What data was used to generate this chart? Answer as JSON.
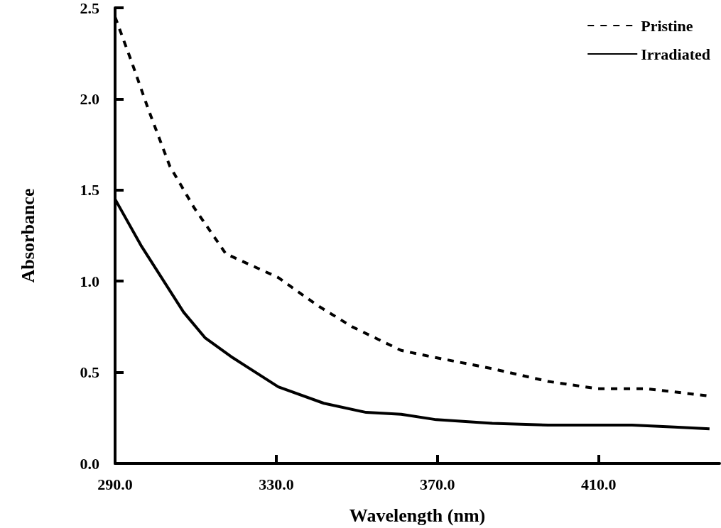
{
  "chart_data": {
    "type": "line",
    "xlabel": "Wavelength (nm)",
    "ylabel": "Absorbance",
    "xlim": [
      290,
      440
    ],
    "xticks": [
      {
        "value": 290,
        "label": "290.0"
      },
      {
        "value": 330,
        "label": "330.0"
      },
      {
        "value": 370,
        "label": "370.0"
      },
      {
        "value": 410,
        "label": "410.0"
      }
    ],
    "ylim": [
      0,
      2.5
    ],
    "yticks": [
      {
        "value": 0,
        "label": "0.0"
      },
      {
        "value": 0.5,
        "label": "0.5"
      },
      {
        "value": 1,
        "label": "1.0"
      },
      {
        "value": 1.5,
        "label": "1.5"
      },
      {
        "value": 2,
        "label": "2.0"
      },
      {
        "value": 2.5,
        "label": "2.5"
      }
    ],
    "grid": false,
    "legend": "top right",
    "marker": "none",
    "series": [
      {
        "name": "Pristine",
        "color": "#000000",
        "line_style": "dashed",
        "x": [
          290,
          294,
          298.3,
          303.6,
          309.7,
          317.5,
          330.5,
          340,
          348.8,
          361,
          369.7,
          383.6,
          397.5,
          409.7,
          421.8,
          437.5
        ],
        "values": [
          2.45,
          2.21,
          1.94,
          1.63,
          1.4,
          1.15,
          1.02,
          0.87,
          0.75,
          0.62,
          0.58,
          0.52,
          0.45,
          0.41,
          0.41,
          0.37
        ]
      },
      {
        "name": "Irradiated",
        "color": "#000000",
        "line_style": "solid",
        "x": [
          290,
          296.6,
          307,
          312.3,
          319.2,
          330.5,
          341.8,
          352.3,
          361,
          369.7,
          383.6,
          397.5,
          418.3,
          428.8,
          437.5
        ],
        "values": [
          1.45,
          1.19,
          0.83,
          0.69,
          0.58,
          0.42,
          0.33,
          0.28,
          0.27,
          0.24,
          0.22,
          0.21,
          0.21,
          0.2,
          0.19
        ]
      }
    ]
  }
}
